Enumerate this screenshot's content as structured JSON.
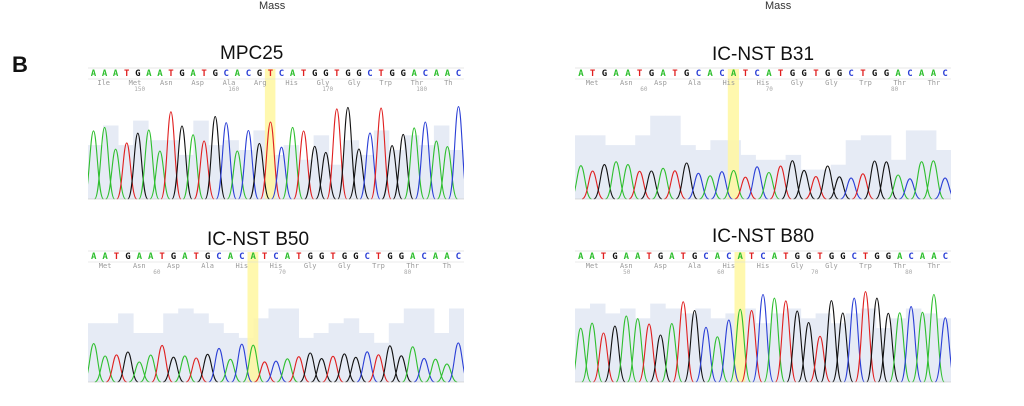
{
  "figure": {
    "top_labels": [
      "Mass",
      "Mass"
    ],
    "panel_letter": "B",
    "base_colors": {
      "A": "#2fbf2f",
      "C": "#2b3fd6",
      "G": "#111111",
      "T": "#e02020"
    },
    "highlight_color": "#fff7a0",
    "quality_fill": "#e6ebf5"
  },
  "panels": [
    {
      "title": "MPC25",
      "sequence": "AAATGAATGATGCACGTCATGGTGGCTGGACAAC",
      "amino_acids": [
        "Ile",
        "Met",
        "Asn",
        "Asp",
        "Ala",
        "Arg",
        "His",
        "Gly",
        "Gly",
        "Trp",
        "Thr",
        "Th"
      ],
      "positions": [
        "150",
        "160",
        "170",
        "180"
      ],
      "highlight_base": 16,
      "quality": [
        0.55,
        0.75,
        0.55,
        0.8,
        0.6,
        0.6,
        0.45,
        0.8,
        0.55,
        0.6,
        0.5,
        0.7,
        0.45,
        0.55,
        0.4,
        0.65,
        0.35,
        0.6,
        0.45,
        0.7,
        0.5,
        0.65,
        0.55,
        0.75,
        0.5
      ]
    },
    {
      "title": "IC-NST B31",
      "sequence": "ATGAATGATGCACATCATGGTGGCTGGACAAC",
      "amino_acids": [
        "Met",
        "Asn",
        "Asp",
        "Ala",
        "His",
        "His",
        "Gly",
        "Gly",
        "Trp",
        "Thr",
        "Thr"
      ],
      "positions": [
        "60",
        "70",
        "80"
      ],
      "highlight_base": 13,
      "quality": [
        0.65,
        0.65,
        0.55,
        0.55,
        0.65,
        0.85,
        0.85,
        0.55,
        0.5,
        0.6,
        0.6,
        0.45,
        0.4,
        0.4,
        0.45,
        0.3,
        0.3,
        0.35,
        0.6,
        0.65,
        0.65,
        0.4,
        0.7,
        0.7,
        0.5
      ]
    },
    {
      "title": "IC-NST B50",
      "sequence": "AATGAATGATGCACATCATGGTGGCTGGACAAC",
      "amino_acids": [
        "Met",
        "Asn",
        "Asp",
        "Ala",
        "His",
        "His",
        "Gly",
        "Gly",
        "Trp",
        "Thr",
        "Th"
      ],
      "positions": [
        "60",
        "70",
        "80"
      ],
      "highlight_base": 14,
      "quality": [
        0.6,
        0.6,
        0.7,
        0.5,
        0.5,
        0.7,
        0.75,
        0.7,
        0.6,
        0.5,
        0.45,
        0.65,
        0.75,
        0.75,
        0.45,
        0.5,
        0.6,
        0.65,
        0.5,
        0.4,
        0.6,
        0.75,
        0.75,
        0.5,
        0.75
      ]
    },
    {
      "title": "IC-NST B80",
      "sequence": "AATGAATGATGCACATCATGGTGGCTGGACAAC",
      "amino_acids": [
        "Met",
        "Asn",
        "Asp",
        "Ala",
        "His",
        "His",
        "Gly",
        "Gly",
        "Trp",
        "Thr",
        "Thr"
      ],
      "positions": [
        "50",
        "60",
        "70",
        "80"
      ],
      "highlight_base": 14,
      "quality": [
        0.75,
        0.8,
        0.7,
        0.75,
        0.65,
        0.8,
        0.75,
        0.7,
        0.75,
        0.65,
        0.7,
        0.75,
        0.6,
        0.7,
        0.75,
        0.65,
        0.7,
        0.6,
        0.7,
        0.75,
        0.55,
        0.65,
        0.75,
        0.7,
        0.65
      ]
    }
  ]
}
